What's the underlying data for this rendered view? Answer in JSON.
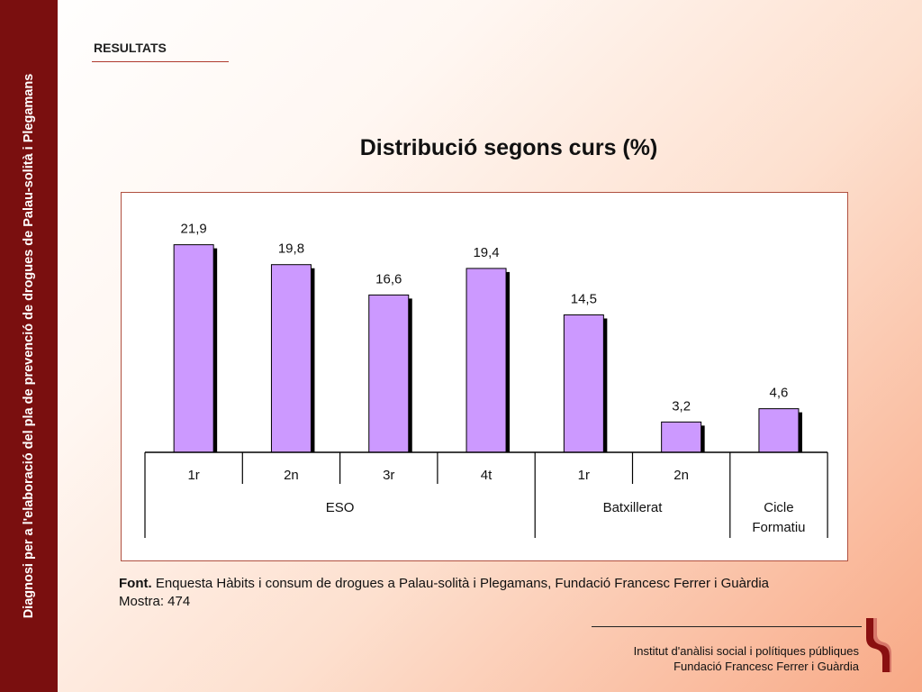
{
  "sidebar": {
    "text": "Diagnosi per a l'elaboració del pla de prevenció de drogues de Palau-solità i Plegamans"
  },
  "header": {
    "section": "RESULTATS",
    "title": "Distribució segons curs (%)"
  },
  "chart_data": {
    "type": "bar",
    "title": "Distribució segons curs (%)",
    "categories": [
      "1r",
      "2n",
      "3r",
      "4t",
      "1r",
      "2n",
      ""
    ],
    "values": [
      21.9,
      19.8,
      16.6,
      19.4,
      14.5,
      3.2,
      4.6
    ],
    "data_labels": [
      "21,9",
      "19,8",
      "16,6",
      "19,4",
      "14,5",
      "3,2",
      "4,6"
    ],
    "groups": [
      {
        "label": "ESO",
        "span": [
          0,
          3
        ]
      },
      {
        "label": "Batxillerat",
        "span": [
          4,
          5
        ]
      },
      {
        "label_lines": [
          "Cicle",
          "Formatiu"
        ],
        "span": [
          6,
          6
        ]
      }
    ],
    "ylim": [
      0,
      25
    ],
    "grid": false,
    "bar_color": "#cc99ff",
    "shadow_color": "#000000"
  },
  "footnote": {
    "source_label": "Font.",
    "source_text": "Enquesta Hàbits i consum de drogues a Palau-solità i Plegamans, Fundació Francesc Ferrer i Guàrdia",
    "sample": "Mostra: 474"
  },
  "footer": {
    "line1": "Institut d'anàlisi social i polítiques públiques",
    "line2": "Fundació Francesc Ferrer i Guàrdia"
  },
  "colors": {
    "sidebar": "#7a0f0f",
    "accent": "#b03a2e",
    "logo": "#8a1010"
  }
}
